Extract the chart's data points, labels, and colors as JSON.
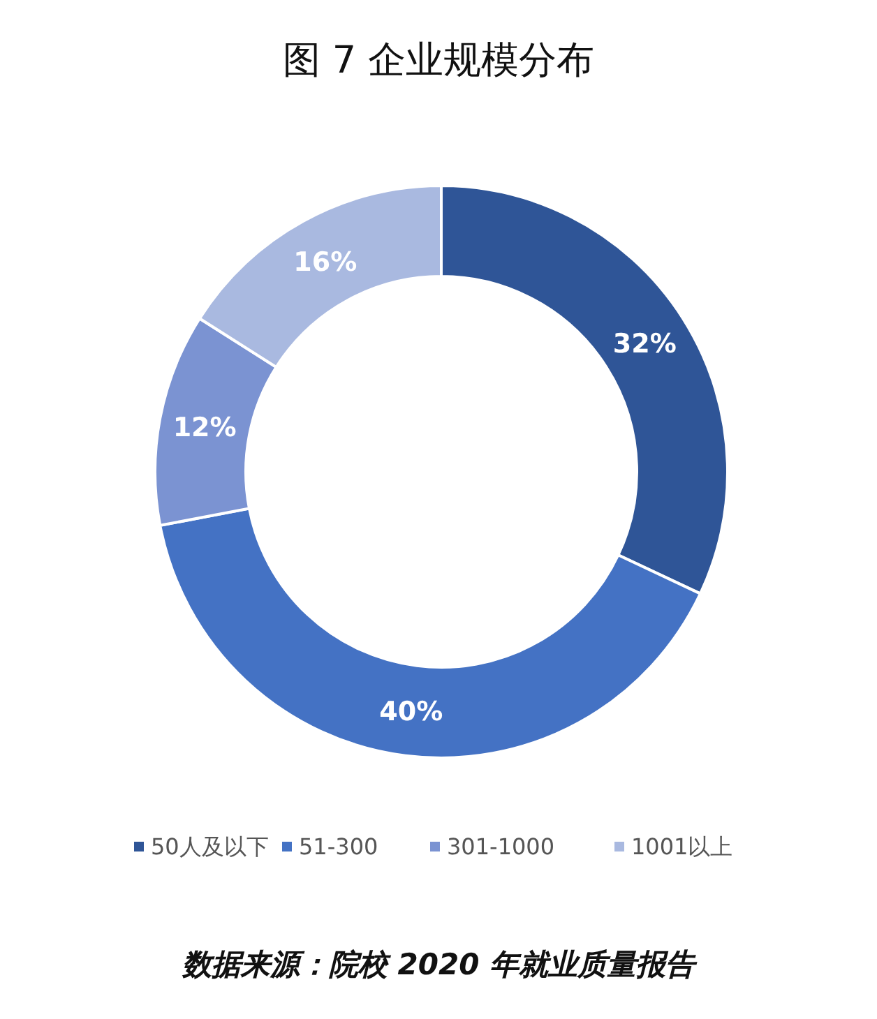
{
  "chart_data": {
    "type": "donut",
    "title": "图 7 企业规模分布",
    "categories": [
      "50人及以下",
      "51-300",
      "301-1000",
      "1001以上"
    ],
    "values": [
      32,
      40,
      12,
      16
    ],
    "value_labels": [
      "32%",
      "40%",
      "12%",
      "16%"
    ],
    "colors": [
      "#2f5597",
      "#4472c4",
      "#7b93d2",
      "#a9b9e0"
    ],
    "legend": "bottom",
    "annotations": [
      "数据来源：院校 2020 年就业质量报告"
    ]
  }
}
